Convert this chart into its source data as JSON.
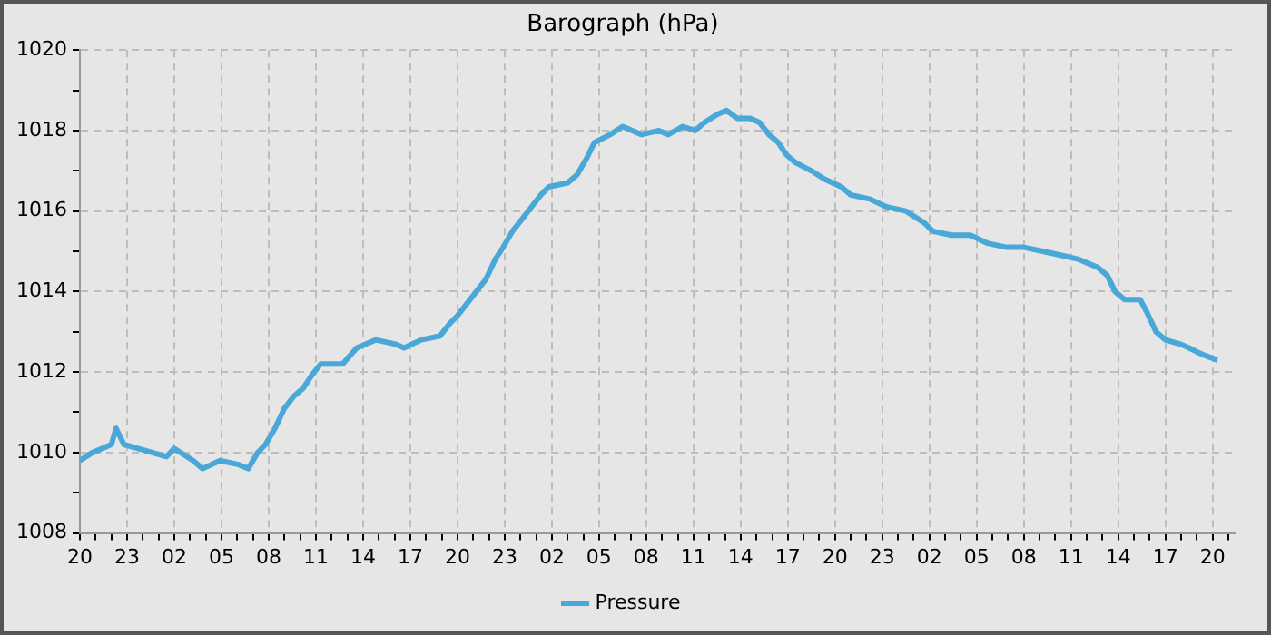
{
  "chart_data": {
    "type": "line",
    "title": "Barograph (hPa)",
    "x": [
      "--01-01T20:00",
      "--01-01T20:48",
      "--01-01T21:24",
      "--01-01T22:00",
      "--01-01T22:18",
      "--01-01T22:48",
      "--01-01T23:42",
      "--01-02T00:36",
      "--01-02T01:30",
      "--01-02T02:00",
      "--01-02T03:12",
      "--01-02T03:48",
      "--01-02T04:54",
      "--01-02T06:06",
      "--01-02T06:42",
      "--01-02T07:18",
      "--01-02T07:48",
      "--01-02T08:24",
      "--01-02T09:00",
      "--01-02T09:36",
      "--01-02T10:12",
      "--01-02T10:42",
      "--01-02T11:18",
      "--01-02T12:42",
      "--01-02T13:36",
      "--01-02T14:48",
      "--01-02T16:00",
      "--01-02T16:36",
      "--01-02T17:42",
      "--01-02T18:54",
      "--01-02T19:30",
      "--01-02T20:00",
      "--01-02T20:36",
      "--01-02T21:12",
      "--01-02T21:48",
      "--01-02T22:24",
      "--01-02T22:54",
      "--01-02T23:30",
      "--01-03T00:06",
      "--01-03T00:42",
      "--01-03T01:18",
      "--01-03T01:48",
      "--01-03T03:00",
      "--01-03T03:36",
      "--01-03T04:12",
      "--01-03T04:42",
      "--01-03T05:42",
      "--01-03T06:30",
      "--01-03T07:42",
      "--01-03T08:48",
      "--01-03T09:24",
      "--01-03T10:18",
      "--01-03T11:06",
      "--01-03T11:42",
      "--01-03T12:30",
      "--01-03T13:06",
      "--01-03T13:48",
      "--01-03T14:36",
      "--01-03T15:12",
      "--01-03T15:48",
      "--01-03T16:24",
      "--01-03T16:54",
      "--01-03T17:30",
      "--01-03T18:30",
      "--01-03T19:18",
      "--01-03T20:24",
      "--01-03T21:00",
      "--01-03T22:12",
      "--01-03T23:18",
      "--01-04T00:30",
      "--01-04T01:42",
      "--01-04T02:12",
      "--01-04T03:24",
      "--01-04T04:36",
      "--01-04T05:42",
      "--01-04T06:54",
      "--01-04T08:00",
      "--01-04T09:12",
      "--01-04T10:24",
      "--01-04T11:30",
      "--01-04T12:42",
      "--01-04T13:18",
      "--01-04T13:48",
      "--01-04T14:24",
      "--01-04T15:24",
      "--01-04T15:48",
      "--01-04T16:24",
      "--01-04T17:00",
      "--01-04T17:54",
      "--01-04T18:30",
      "--01-04T19:00",
      "--01-04T19:36",
      "--01-04T20:18"
    ],
    "series": [
      {
        "name": "Pressure",
        "color": "#4aa8d8",
        "values": [
          1009.8,
          1010.0,
          1010.1,
          1010.2,
          1010.6,
          1010.2,
          1010.1,
          1010.0,
          1009.9,
          1010.1,
          1009.8,
          1009.6,
          1009.8,
          1009.7,
          1009.6,
          1010.0,
          1010.2,
          1010.6,
          1011.1,
          1011.4,
          1011.6,
          1011.9,
          1012.2,
          1012.2,
          1012.6,
          1012.8,
          1012.7,
          1012.6,
          1012.8,
          1012.9,
          1013.2,
          1013.4,
          1013.7,
          1014.0,
          1014.3,
          1014.8,
          1015.1,
          1015.5,
          1015.8,
          1016.1,
          1016.4,
          1016.6,
          1016.7,
          1016.9,
          1017.3,
          1017.7,
          1017.9,
          1018.1,
          1017.9,
          1018.0,
          1017.9,
          1018.1,
          1018.0,
          1018.2,
          1018.4,
          1018.5,
          1018.3,
          1018.3,
          1018.2,
          1017.9,
          1017.7,
          1017.4,
          1017.2,
          1017.0,
          1016.8,
          1016.6,
          1016.4,
          1016.3,
          1016.1,
          1016.0,
          1015.7,
          1015.5,
          1015.4,
          1015.4,
          1015.2,
          1015.1,
          1015.1,
          1015.0,
          1014.9,
          1014.8,
          1014.6,
          1014.4,
          1014.0,
          1013.8,
          1013.8,
          1013.5,
          1013.0,
          1012.8,
          1012.7,
          1012.6,
          1012.5,
          1012.4,
          1012.3
        ]
      }
    ],
    "xlim": [
      "--01-01T20:00",
      "--01-04T21:24"
    ],
    "xticks": [
      {
        "value": "--01-01T20:00",
        "label": "20"
      },
      {
        "value": "--01-01T21:00",
        "label": null
      },
      {
        "value": "--01-01T22:00",
        "label": null
      },
      {
        "value": "--01-01T23:00",
        "label": "23"
      },
      {
        "value": "--01-02T00:00",
        "label": null
      },
      {
        "value": "--01-02T01:00",
        "label": null
      },
      {
        "value": "--01-02T02:00",
        "label": "02"
      },
      {
        "value": "--01-02T03:00",
        "label": null
      },
      {
        "value": "--01-02T04:00",
        "label": null
      },
      {
        "value": "--01-02T05:00",
        "label": "05"
      },
      {
        "value": "--01-02T06:00",
        "label": null
      },
      {
        "value": "--01-02T07:00",
        "label": null
      },
      {
        "value": "--01-02T08:00",
        "label": "08"
      },
      {
        "value": "--01-02T09:00",
        "label": null
      },
      {
        "value": "--01-02T10:00",
        "label": null
      },
      {
        "value": "--01-02T11:00",
        "label": "11"
      },
      {
        "value": "--01-02T12:00",
        "label": null
      },
      {
        "value": "--01-02T13:00",
        "label": null
      },
      {
        "value": "--01-02T14:00",
        "label": "14"
      },
      {
        "value": "--01-02T15:00",
        "label": null
      },
      {
        "value": "--01-02T16:00",
        "label": null
      },
      {
        "value": "--01-02T17:00",
        "label": "17"
      },
      {
        "value": "--01-02T18:00",
        "label": null
      },
      {
        "value": "--01-02T19:00",
        "label": null
      },
      {
        "value": "--01-02T20:00",
        "label": "20"
      },
      {
        "value": "--01-02T21:00",
        "label": null
      },
      {
        "value": "--01-02T22:00",
        "label": null
      },
      {
        "value": "--01-02T23:00",
        "label": "23"
      },
      {
        "value": "--01-03T00:00",
        "label": null
      },
      {
        "value": "--01-03T01:00",
        "label": null
      },
      {
        "value": "--01-03T02:00",
        "label": "02"
      },
      {
        "value": "--01-03T03:00",
        "label": null
      },
      {
        "value": "--01-03T04:00",
        "label": null
      },
      {
        "value": "--01-03T05:00",
        "label": "05"
      },
      {
        "value": "--01-03T06:00",
        "label": null
      },
      {
        "value": "--01-03T07:00",
        "label": null
      },
      {
        "value": "--01-03T08:00",
        "label": "08"
      },
      {
        "value": "--01-03T09:00",
        "label": null
      },
      {
        "value": "--01-03T10:00",
        "label": null
      },
      {
        "value": "--01-03T11:00",
        "label": "11"
      },
      {
        "value": "--01-03T12:00",
        "label": null
      },
      {
        "value": "--01-03T13:00",
        "label": null
      },
      {
        "value": "--01-03T14:00",
        "label": "14"
      },
      {
        "value": "--01-03T15:00",
        "label": null
      },
      {
        "value": "--01-03T16:00",
        "label": null
      },
      {
        "value": "--01-03T17:00",
        "label": "17"
      },
      {
        "value": "--01-03T18:00",
        "label": null
      },
      {
        "value": "--01-03T19:00",
        "label": null
      },
      {
        "value": "--01-03T20:00",
        "label": "20"
      },
      {
        "value": "--01-03T21:00",
        "label": null
      },
      {
        "value": "--01-03T22:00",
        "label": null
      },
      {
        "value": "--01-03T23:00",
        "label": "23"
      },
      {
        "value": "--01-04T00:00",
        "label": null
      },
      {
        "value": "--01-04T01:00",
        "label": null
      },
      {
        "value": "--01-04T02:00",
        "label": "02"
      },
      {
        "value": "--01-04T03:00",
        "label": null
      },
      {
        "value": "--01-04T04:00",
        "label": null
      },
      {
        "value": "--01-04T05:00",
        "label": "05"
      },
      {
        "value": "--01-04T06:00",
        "label": null
      },
      {
        "value": "--01-04T07:00",
        "label": null
      },
      {
        "value": "--01-04T08:00",
        "label": "08"
      },
      {
        "value": "--01-04T09:00",
        "label": null
      },
      {
        "value": "--01-04T10:00",
        "label": null
      },
      {
        "value": "--01-04T11:00",
        "label": "11"
      },
      {
        "value": "--01-04T12:00",
        "label": null
      },
      {
        "value": "--01-04T13:00",
        "label": null
      },
      {
        "value": "--01-04T14:00",
        "label": "14"
      },
      {
        "value": "--01-04T15:00",
        "label": null
      },
      {
        "value": "--01-04T16:00",
        "label": null
      },
      {
        "value": "--01-04T17:00",
        "label": "17"
      },
      {
        "value": "--01-04T18:00",
        "label": null
      },
      {
        "value": "--01-04T19:00",
        "label": null
      },
      {
        "value": "--01-04T20:00",
        "label": "20"
      },
      {
        "value": "--01-04T21:00",
        "label": null
      }
    ],
    "ylim": [
      1008,
      1020
    ],
    "yticks": [
      1008,
      {
        "value": 1009,
        "label": null
      },
      1010,
      {
        "value": 1011,
        "label": null
      },
      1012,
      {
        "value": 1013,
        "label": null
      },
      1014,
      {
        "value": 1015,
        "label": null
      },
      1016,
      {
        "value": 1017,
        "label": null
      },
      1018,
      {
        "value": 1019,
        "label": null
      },
      1020
    ],
    "grid": true,
    "legend": "bottom",
    "marker": "none",
    "line_style": "solid"
  }
}
